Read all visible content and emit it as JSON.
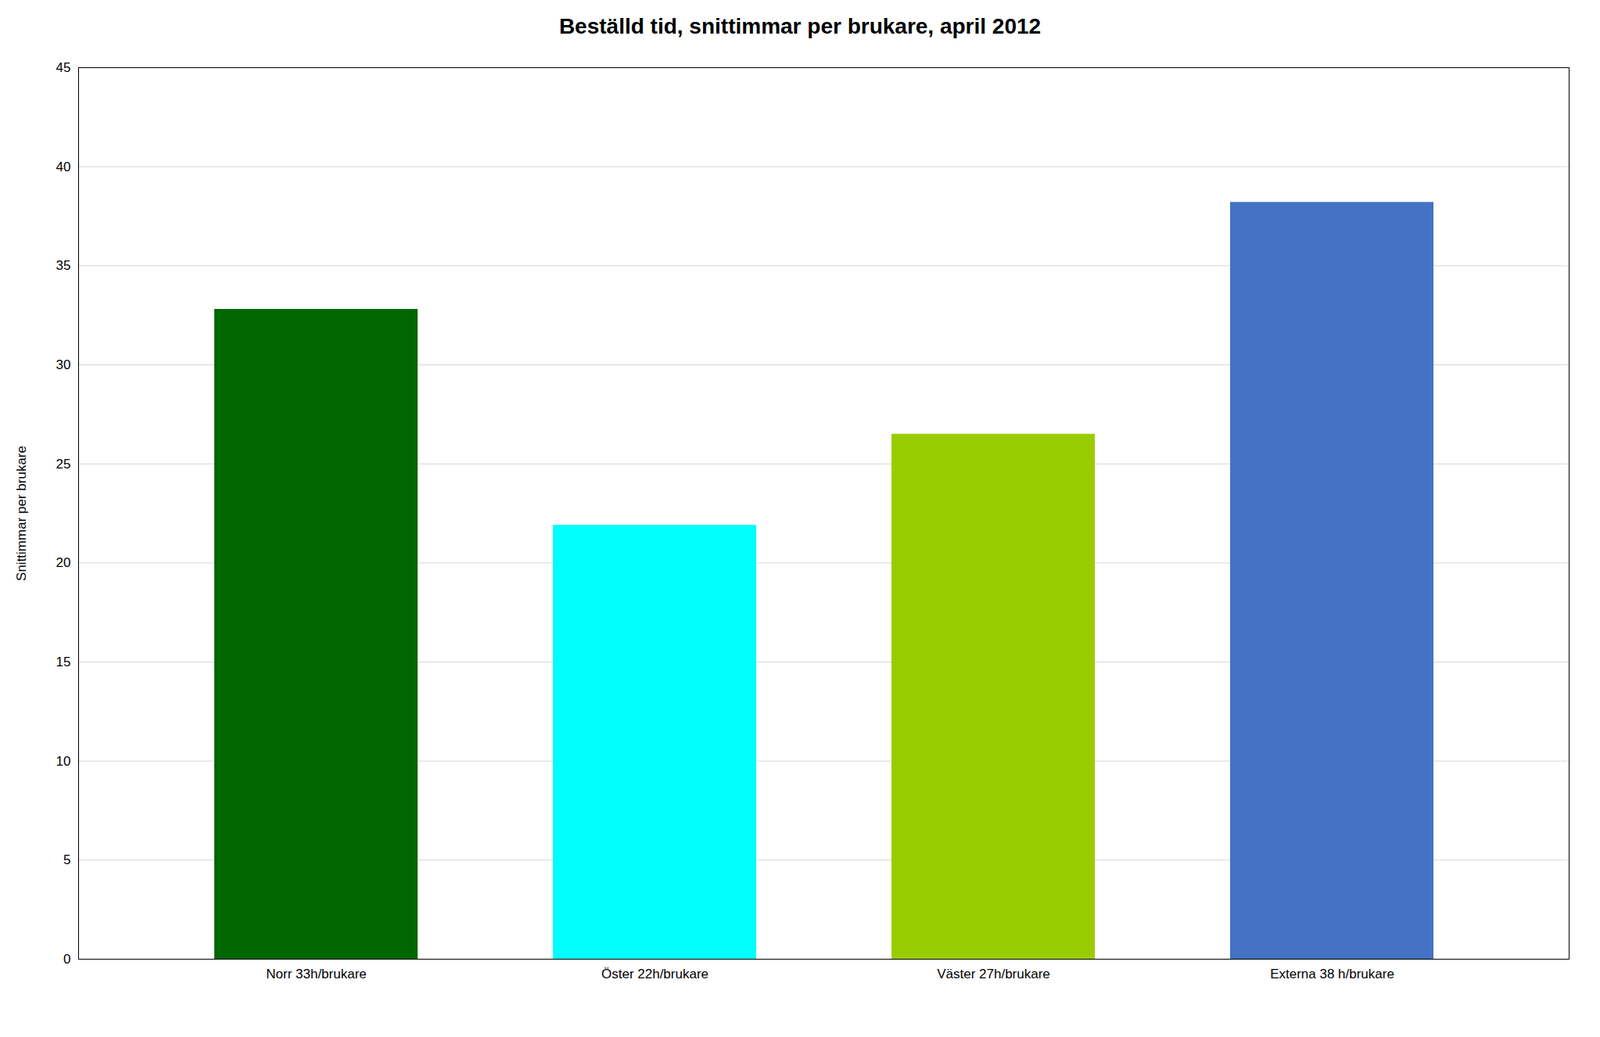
{
  "chart_data": {
    "type": "bar",
    "title": "Beställd tid, snittimmar per brukare, april 2012",
    "categories": [
      "Norr 33h/brukare",
      "Öster 22h/brukare",
      "Väster 27h/brukare",
      "Externa 38 h/brukare"
    ],
    "values": [
      32.8,
      21.9,
      26.5,
      38.2
    ],
    "colors": [
      "#006600",
      "#00FFFF",
      "#99CC00",
      "#4472C4"
    ],
    "ylabel": "Snittimmar per brukare",
    "ylim": [
      0,
      45
    ],
    "yticks": [
      0,
      5,
      10,
      15,
      20,
      25,
      30,
      35,
      40,
      45
    ],
    "grid": true
  }
}
